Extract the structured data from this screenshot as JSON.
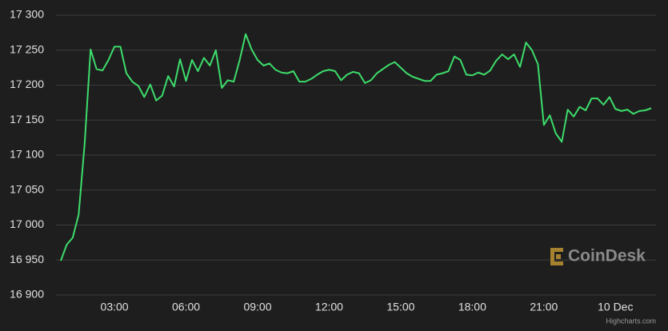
{
  "chart_data": {
    "type": "line",
    "x": [
      0.75,
      1,
      1.25,
      1.5,
      1.75,
      2,
      2.25,
      2.5,
      2.75,
      3,
      3.25,
      3.5,
      3.75,
      4,
      4.25,
      4.5,
      4.75,
      5,
      5.25,
      5.5,
      5.75,
      6,
      6.25,
      6.5,
      6.75,
      7,
      7.25,
      7.5,
      7.75,
      8,
      8.25,
      8.5,
      8.75,
      9,
      9.25,
      9.5,
      9.75,
      10,
      10.25,
      10.5,
      10.75,
      11,
      11.25,
      11.5,
      11.75,
      12,
      12.25,
      12.5,
      12.75,
      13,
      13.25,
      13.5,
      13.75,
      14,
      14.25,
      14.5,
      14.75,
      15,
      15.25,
      15.5,
      15.75,
      16,
      16.25,
      16.5,
      16.75,
      17,
      17.25,
      17.5,
      17.75,
      18,
      18.25,
      18.5,
      18.75,
      19,
      19.25,
      19.5,
      19.75,
      20,
      20.25,
      20.5,
      20.75,
      21,
      21.25,
      21.5,
      21.75,
      22,
      22.25,
      22.5,
      22.75,
      23,
      23.25,
      23.5,
      23.75,
      24,
      24.25,
      24.5,
      24.75,
      25,
      25.25,
      25.5
    ],
    "values": [
      16949,
      16972,
      16982,
      17015,
      17116,
      17251,
      17223,
      17221,
      17236,
      17255,
      17255,
      17217,
      17205,
      17199,
      17183,
      17201,
      17178,
      17185,
      17213,
      17198,
      17237,
      17206,
      17236,
      17220,
      17239,
      17228,
      17250,
      17196,
      17207,
      17205,
      17236,
      17273,
      17251,
      17236,
      17228,
      17231,
      17222,
      17218,
      17217,
      17220,
      17205,
      17205,
      17209,
      17215,
      17220,
      17222,
      17220,
      17207,
      17215,
      17219,
      17217,
      17203,
      17207,
      17217,
      17223,
      17229,
      17233,
      17225,
      17217,
      17212,
      17209,
      17206,
      17206,
      17215,
      17217,
      17220,
      17241,
      17236,
      17215,
      17214,
      17218,
      17215,
      17221,
      17235,
      17244,
      17237,
      17244,
      17226,
      17261,
      17250,
      17230,
      17143,
      17157,
      17131,
      17119,
      17165,
      17155,
      17169,
      17164,
      17181,
      17181,
      17172,
      17183,
      17166,
      17163,
      17165,
      17159,
      17163,
      17164,
      17167
    ],
    "color": "#3ddc6b",
    "xlim": [
      0.55,
      25.7
    ],
    "xticks": [
      {
        "value": 3,
        "label": "03:00"
      },
      {
        "value": 6,
        "label": "06:00"
      },
      {
        "value": 9,
        "label": "09:00"
      },
      {
        "value": 12,
        "label": "12:00"
      },
      {
        "value": 15,
        "label": "15:00"
      },
      {
        "value": 18,
        "label": "18:00"
      },
      {
        "value": 21,
        "label": "21:00"
      },
      {
        "value": 24,
        "label": "10 Dec"
      }
    ],
    "ylim": [
      16900,
      17300
    ],
    "yticks": [
      {
        "value": 16900,
        "label": "16 900"
      },
      {
        "value": 16950,
        "label": "16 950"
      },
      {
        "value": 17000,
        "label": "17 000"
      },
      {
        "value": 17050,
        "label": "17 050"
      },
      {
        "value": 17100,
        "label": "17 100"
      },
      {
        "value": 17150,
        "label": "17 150"
      },
      {
        "value": 17200,
        "label": "17 200"
      },
      {
        "value": 17250,
        "label": "17 250"
      },
      {
        "value": 17300,
        "label": "17 300"
      }
    ],
    "grid": true,
    "watermark": "CoinDesk",
    "credits": "Highcharts.com"
  }
}
